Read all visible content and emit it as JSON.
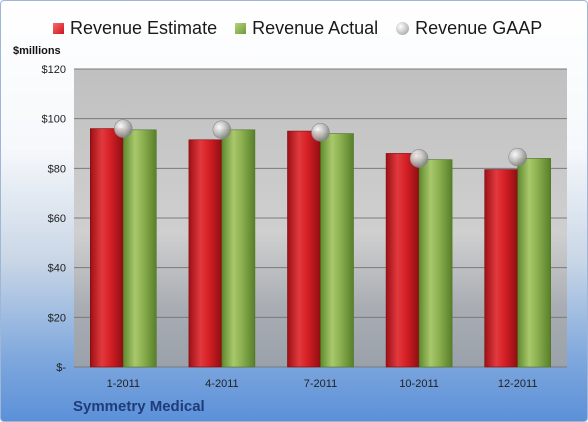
{
  "chart_data": {
    "type": "bar",
    "title": "",
    "ylabel": "$millions",
    "xlabel": "",
    "ylim": [
      0,
      120
    ],
    "ytick_labels": [
      "$-",
      "$20",
      "$40",
      "$60",
      "$80",
      "$100",
      "$120"
    ],
    "categories": [
      "1-2011",
      "4-2011",
      "7-2011",
      "10-2011",
      "12-2011"
    ],
    "series": [
      {
        "name": "Revenue Estimate",
        "kind": "bar",
        "color": "#d42026",
        "values": [
          96,
          91.5,
          95,
          86,
          79.5
        ]
      },
      {
        "name": "Revenue Actual",
        "kind": "bar",
        "color": "#8cb050",
        "values": [
          95.5,
          95.5,
          94,
          83.5,
          84
        ]
      },
      {
        "name": "Revenue GAAP",
        "kind": "marker",
        "color": "#b0b0b0",
        "values": [
          96,
          95.5,
          94.5,
          84,
          84.5
        ]
      }
    ],
    "legend": "top",
    "grid": true
  },
  "footer": {
    "company": "Symmetry Medical"
  }
}
